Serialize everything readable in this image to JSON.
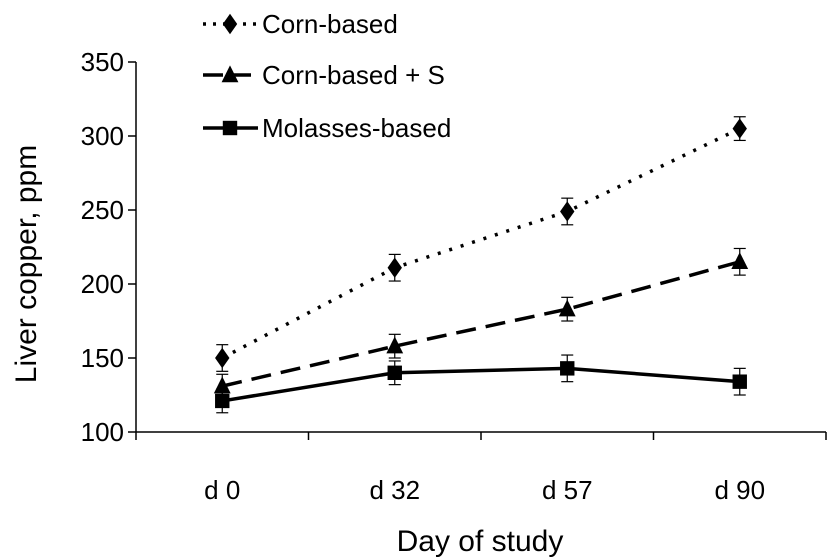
{
  "chart_data": {
    "type": "line",
    "categories": [
      "d 0",
      "d 32",
      "d 57",
      "d 90"
    ],
    "xlabel": "Day of study",
    "ylabel": "Liver copper, ppm",
    "ylim": [
      100,
      350
    ],
    "yticks": [
      100,
      150,
      200,
      250,
      300,
      350
    ],
    "grid": false,
    "legend_position": "top-left",
    "series": [
      {
        "name": "Corn-based",
        "marker": "diamond",
        "line_style": "dotted",
        "values": [
          150,
          211,
          249,
          305
        ],
        "errors": [
          9,
          9,
          9,
          8
        ]
      },
      {
        "name": "Corn-based + S",
        "marker": "triangle",
        "line_style": "dashed",
        "values": [
          131,
          158,
          183,
          215
        ],
        "errors": [
          8,
          8,
          8,
          9
        ]
      },
      {
        "name": "Molasses-based",
        "marker": "square",
        "line_style": "solid",
        "values": [
          121,
          140,
          143,
          134
        ],
        "errors": [
          8,
          8,
          9,
          9
        ]
      }
    ]
  }
}
